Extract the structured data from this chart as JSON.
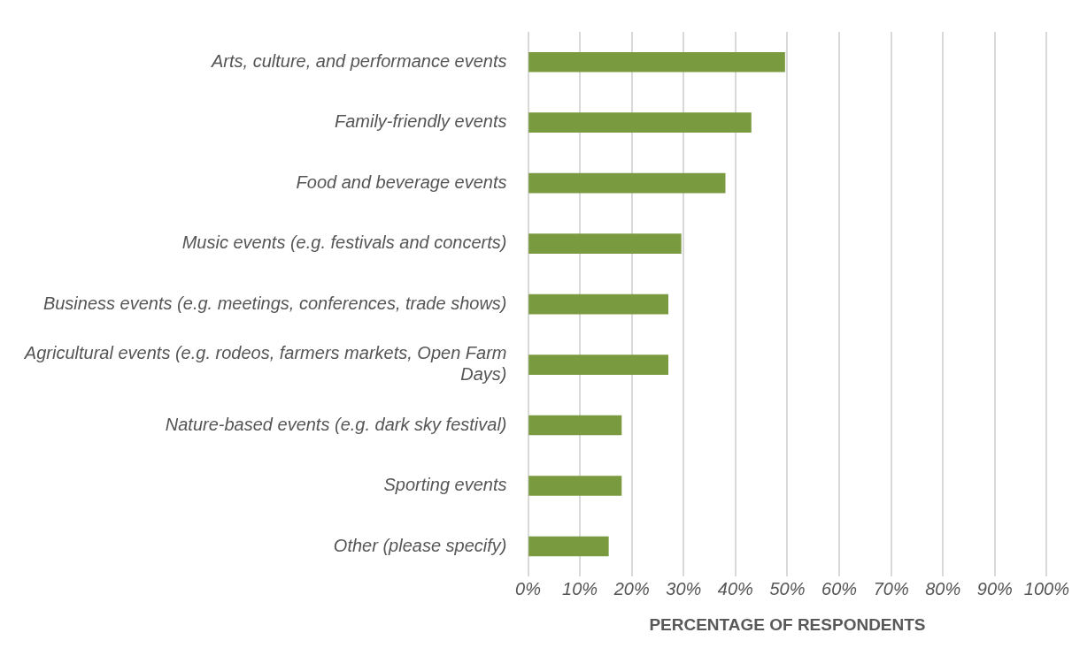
{
  "chart_data": {
    "type": "bar",
    "orientation": "horizontal",
    "xlabel": "PERCENTAGE OF RESPONDENTS",
    "categories": [
      "Arts, culture, and performance events",
      "Family-friendly events",
      "Food and beverage events",
      "Music events (e.g. festivals and concerts)",
      "Business events (e.g. meetings, conferences, trade shows)",
      "Agricultural events (e.g. rodeos, farmers markets, Open Farm Days)",
      "Nature-based events (e.g. dark sky festival)",
      "Sporting events",
      "Other (please specify)"
    ],
    "values": [
      49.5,
      43,
      38,
      29.5,
      27,
      27,
      18,
      18,
      15.5
    ],
    "color": "#7a9a3f",
    "xlim": [
      0,
      100
    ],
    "xticks": [
      {
        "value": 0,
        "label": "0%"
      },
      {
        "value": 10,
        "label": "10%"
      },
      {
        "value": 20,
        "label": "20%"
      },
      {
        "value": 30,
        "label": "30%"
      },
      {
        "value": 40,
        "label": "40%"
      },
      {
        "value": 50,
        "label": "50%"
      },
      {
        "value": 60,
        "label": "60%"
      },
      {
        "value": 70,
        "label": "70%"
      },
      {
        "value": 80,
        "label": "80%"
      },
      {
        "value": 90,
        "label": "90%"
      },
      {
        "value": 100,
        "label": "100%"
      }
    ],
    "grid": "x",
    "legend": false
  }
}
